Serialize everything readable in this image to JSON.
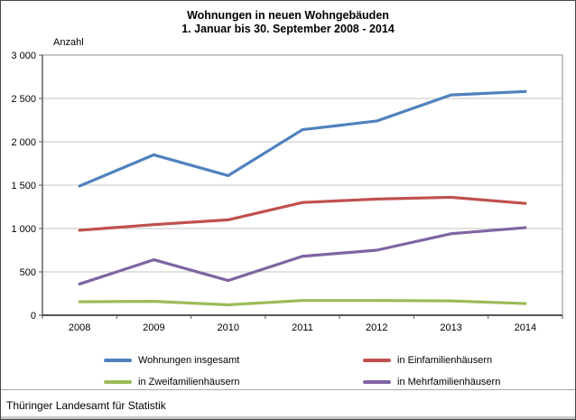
{
  "title": {
    "line1": "Wohnungen in neuen Wohngebäuden",
    "line2": "1. Januar bis 30. September 2008 - 2014"
  },
  "footer": {
    "source": "Thüringer Landesamt für Statistik"
  },
  "chart_data": {
    "type": "line",
    "title": "Wohnungen in neuen Wohngebäuden — 1. Januar bis 30. September 2008 - 2014",
    "ylabel": "Anzahl",
    "xlabel": "",
    "categories": [
      "2008",
      "2009",
      "2010",
      "2011",
      "2012",
      "2013",
      "2014"
    ],
    "ylim": [
      0,
      3000
    ],
    "ytick_step": 500,
    "ytick_labels": [
      "0",
      "500",
      "1 000",
      "1 500",
      "2 000",
      "2 500",
      "3 000"
    ],
    "grid": true,
    "legend_position": "bottom",
    "colors": {
      "gridline": "#c6c6c6",
      "axis": "#555555",
      "frame": "#8c8c8c"
    },
    "series": [
      {
        "name": "Wohnungen insgesamt",
        "color": "#4F81BD",
        "values": [
          1490,
          1850,
          1610,
          2140,
          2240,
          2540,
          2580
        ]
      },
      {
        "name": "in Einfamilienhäusern",
        "color": "#C0504D",
        "values": [
          980,
          1045,
          1100,
          1300,
          1340,
          1360,
          1290
        ]
      },
      {
        "name": "in Zweifamilienhäusern",
        "color": "#9BBB59",
        "values": [
          155,
          160,
          120,
          170,
          170,
          165,
          135
        ]
      },
      {
        "name": "in Mehrfamilienhäusern",
        "color": "#8064A2",
        "values": [
          360,
          640,
          400,
          680,
          750,
          940,
          1010
        ]
      }
    ]
  }
}
